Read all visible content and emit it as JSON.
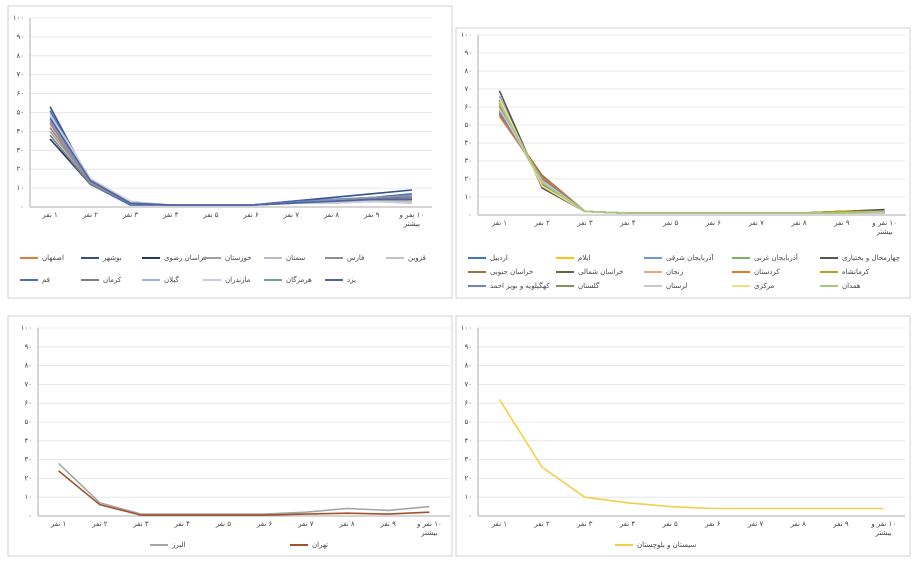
{
  "chart_data": [
    {
      "type": "line",
      "categories": [
        "۱ نفر",
        "۲ نفر",
        "۳ نفر",
        "۴ نفر",
        "۵ نفر",
        "۶ نفر",
        "۷ نفر",
        "۸ نفر",
        "۹ نفر",
        "۱۰ نفر و بیشتر"
      ],
      "ylim": [
        0,
        100
      ],
      "yticks": [
        {
          "value": 0,
          "label": "۰"
        },
        {
          "value": 10,
          "label": "۱۰"
        },
        {
          "value": 20,
          "label": "۲۰"
        },
        {
          "value": 30,
          "label": "۳۰"
        },
        {
          "value": 40,
          "label": "۴۰"
        },
        {
          "value": 50,
          "label": "۵۰"
        },
        {
          "value": 60,
          "label": "۶۰"
        },
        {
          "value": 70,
          "label": "۷۰"
        },
        {
          "value": 80,
          "label": "۸۰"
        },
        {
          "value": 90,
          "label": "۹۰"
        },
        {
          "value": 100,
          "label": "۱۰۰"
        }
      ],
      "grid": true,
      "series": [
        {
          "name": "اصفهان",
          "color": "#e07b39",
          "values": [
            44,
            13,
            2,
            1,
            1,
            1,
            2,
            3,
            3,
            4
          ]
        },
        {
          "name": "بوشهر",
          "color": "#34508f",
          "values": [
            53,
            13,
            2,
            1,
            1,
            1,
            3,
            5,
            7,
            9
          ]
        },
        {
          "name": "خراسان رضوی",
          "color": "#26366a",
          "values": [
            36,
            12,
            2,
            1,
            1,
            1,
            2,
            3,
            4,
            6
          ]
        },
        {
          "name": "خوزستان",
          "color": "#a0a0a0",
          "values": [
            40,
            13,
            2,
            1,
            1,
            1,
            2,
            3,
            4,
            5
          ]
        },
        {
          "name": "سمنان",
          "color": "#b4bccb",
          "values": [
            48,
            14,
            2,
            1,
            1,
            1,
            2,
            3,
            3,
            3
          ]
        },
        {
          "name": "فارس",
          "color": "#8e8e8e",
          "values": [
            42,
            13,
            2,
            1,
            1,
            1,
            2,
            2,
            3,
            4
          ]
        },
        {
          "name": "قزوین",
          "color": "#c2c2c2",
          "values": [
            50,
            15,
            2,
            1,
            1,
            1,
            2,
            2,
            3,
            3
          ]
        },
        {
          "name": "قم",
          "color": "#4a6fb5",
          "values": [
            51,
            12,
            1,
            1,
            1,
            1,
            3,
            4,
            5,
            7
          ]
        },
        {
          "name": "کرمان",
          "color": "#7f7f7f",
          "values": [
            38,
            12,
            2,
            1,
            1,
            1,
            2,
            3,
            4,
            5
          ]
        },
        {
          "name": "گیلان",
          "color": "#9fb4d9",
          "values": [
            46,
            14,
            2,
            1,
            1,
            1,
            2,
            3,
            3,
            2
          ]
        },
        {
          "name": "مازندران",
          "color": "#c8cfd8",
          "values": [
            49,
            15,
            3,
            1,
            1,
            1,
            2,
            2,
            3,
            2
          ]
        },
        {
          "name": "هرمزگان",
          "color": "#8494b4",
          "values": [
            45,
            13,
            2,
            1,
            1,
            1,
            2,
            4,
            5,
            6
          ]
        },
        {
          "name": "یزد",
          "color": "#5060a0",
          "values": [
            47,
            14,
            2,
            1,
            1,
            1,
            2,
            3,
            4,
            4
          ]
        }
      ]
    },
    {
      "type": "line",
      "categories": [
        "۱ نفر",
        "۲ نفر",
        "۳ نفر",
        "۴ نفر",
        "۵ نفر",
        "۶ نفر",
        "۷ نفر",
        "۸ نفر",
        "۹ نفر",
        "۱۰ نفر و بیشتر"
      ],
      "ylim": [
        0,
        100
      ],
      "yticks": [
        {
          "value": 0,
          "label": "۰"
        },
        {
          "value": 10,
          "label": "۱۰"
        },
        {
          "value": 20,
          "label": "۲۰"
        },
        {
          "value": 30,
          "label": "۳۰"
        },
        {
          "value": 40,
          "label": "۴۰"
        },
        {
          "value": 50,
          "label": "۵۰"
        },
        {
          "value": 60,
          "label": "۶۰"
        },
        {
          "value": 70,
          "label": "۷۰"
        },
        {
          "value": 80,
          "label": "۸۰"
        },
        {
          "value": 90,
          "label": "۹۰"
        },
        {
          "value": 100,
          "label": "۱۰۰"
        }
      ],
      "grid": true,
      "series": [
        {
          "name": "اردبیل",
          "color": "#4472c4",
          "values": [
            62,
            17,
            2,
            1,
            1,
            1,
            1,
            1,
            1,
            2
          ]
        },
        {
          "name": "ایلام",
          "color": "#f5c518",
          "values": [
            58,
            19,
            2,
            1,
            1,
            1,
            1,
            1,
            1,
            1
          ]
        },
        {
          "name": "آذربایجان شرقی",
          "color": "#6a9bd8",
          "values": [
            66,
            16,
            2,
            1,
            1,
            1,
            1,
            1,
            2,
            2
          ]
        },
        {
          "name": "آذربایجان غربی",
          "color": "#7fb069",
          "values": [
            60,
            18,
            2,
            1,
            1,
            1,
            1,
            1,
            1,
            2
          ]
        },
        {
          "name": "چهارمحال و بختیاری",
          "color": "#555555",
          "values": [
            69,
            15,
            2,
            1,
            1,
            1,
            1,
            1,
            2,
            3
          ]
        },
        {
          "name": "خراسان جنوبی",
          "color": "#a0703a",
          "values": [
            56,
            22,
            2,
            1,
            1,
            1,
            1,
            1,
            1,
            1
          ]
        },
        {
          "name": "خراسان شمالی",
          "color": "#5c6a3a",
          "values": [
            64,
            17,
            2,
            1,
            1,
            1,
            1,
            1,
            2,
            1
          ]
        },
        {
          "name": "زنجان",
          "color": "#e8a880",
          "values": [
            63,
            18,
            2,
            1,
            1,
            1,
            1,
            1,
            1,
            2
          ]
        },
        {
          "name": "کردستان",
          "color": "#e07a2a",
          "values": [
            55,
            21,
            2,
            1,
            1,
            1,
            1,
            1,
            1,
            2
          ]
        },
        {
          "name": "کرمانشاه",
          "color": "#b8a020",
          "values": [
            58,
            20,
            2,
            1,
            1,
            1,
            1,
            1,
            2,
            2
          ]
        },
        {
          "name": "کهگیلویه و بویر احمد",
          "color": "#7080c0",
          "values": [
            57,
            20,
            2,
            1,
            1,
            1,
            1,
            1,
            1,
            1
          ]
        },
        {
          "name": "گلستان",
          "color": "#8a9060",
          "values": [
            61,
            17,
            2,
            1,
            1,
            1,
            1,
            1,
            1,
            2
          ]
        },
        {
          "name": "لرستان",
          "color": "#c8c8c8",
          "values": [
            59,
            19,
            2,
            1,
            1,
            1,
            1,
            1,
            1,
            1
          ]
        },
        {
          "name": "مرکزی",
          "color": "#f0e080",
          "values": [
            65,
            16,
            2,
            1,
            1,
            1,
            1,
            1,
            1,
            2
          ]
        },
        {
          "name": "همدان",
          "color": "#a8c880",
          "values": [
            62,
            18,
            2,
            1,
            1,
            1,
            1,
            1,
            1,
            2
          ]
        }
      ]
    },
    {
      "type": "line",
      "categories": [
        "۱ نفر",
        "۲ نفر",
        "۳ نفر",
        "۴ نفر",
        "۵ نفر",
        "۶ نفر",
        "۷ نفر",
        "۸ نفر",
        "۹ نفر",
        "۱۰ نفر و بیشتر"
      ],
      "ylim": [
        0,
        100
      ],
      "yticks": [
        {
          "value": 0,
          "label": "۰"
        },
        {
          "value": 10,
          "label": "۱۰"
        },
        {
          "value": 20,
          "label": "۲۰"
        },
        {
          "value": 30,
          "label": "۳۰"
        },
        {
          "value": 40,
          "label": "۴۰"
        },
        {
          "value": 50,
          "label": "۵۰"
        },
        {
          "value": 60,
          "label": "۶۰"
        },
        {
          "value": 70,
          "label": "۷۰"
        },
        {
          "value": 80,
          "label": "۸۰"
        },
        {
          "value": 90,
          "label": "۹۰"
        },
        {
          "value": 100,
          "label": "۱۰۰"
        }
      ],
      "grid": true,
      "series": [
        {
          "name": "البرز",
          "color": "#a6a6a6",
          "values": [
            28,
            7,
            1,
            1,
            1,
            1,
            2,
            4,
            3,
            5
          ]
        },
        {
          "name": "تهران",
          "color": "#a0522d",
          "values": [
            24,
            6,
            0.5,
            0.5,
            0.5,
            0.5,
            1,
            1.5,
            1,
            2
          ]
        }
      ]
    },
    {
      "type": "line",
      "categories": [
        "۱ نفر",
        "۲ نفر",
        "۳ نفر",
        "۴ نفر",
        "۵ نفر",
        "۶ نفر",
        "۷ نفر",
        "۸ نفر",
        "۹ نفر",
        "۱۰ نفر و بیشتر"
      ],
      "ylim": [
        0,
        100
      ],
      "yticks": [
        {
          "value": 0,
          "label": "۰"
        },
        {
          "value": 10,
          "label": "۱۰"
        },
        {
          "value": 20,
          "label": "۲۰"
        },
        {
          "value": 30,
          "label": "۳۰"
        },
        {
          "value": 40,
          "label": "۴۰"
        },
        {
          "value": 50,
          "label": "۵۰"
        },
        {
          "value": 60,
          "label": "۶۰"
        },
        {
          "value": 70,
          "label": "۷۰"
        },
        {
          "value": 80,
          "label": "۸۰"
        },
        {
          "value": 90,
          "label": "۹۰"
        },
        {
          "value": 100,
          "label": "۱۰۰"
        }
      ],
      "grid": true,
      "series": [
        {
          "name": "سیستان و بلوچستان",
          "color": "#f2d04a",
          "values": [
            62,
            26,
            10,
            7,
            5,
            4,
            4,
            4,
            4,
            4
          ]
        }
      ]
    }
  ]
}
